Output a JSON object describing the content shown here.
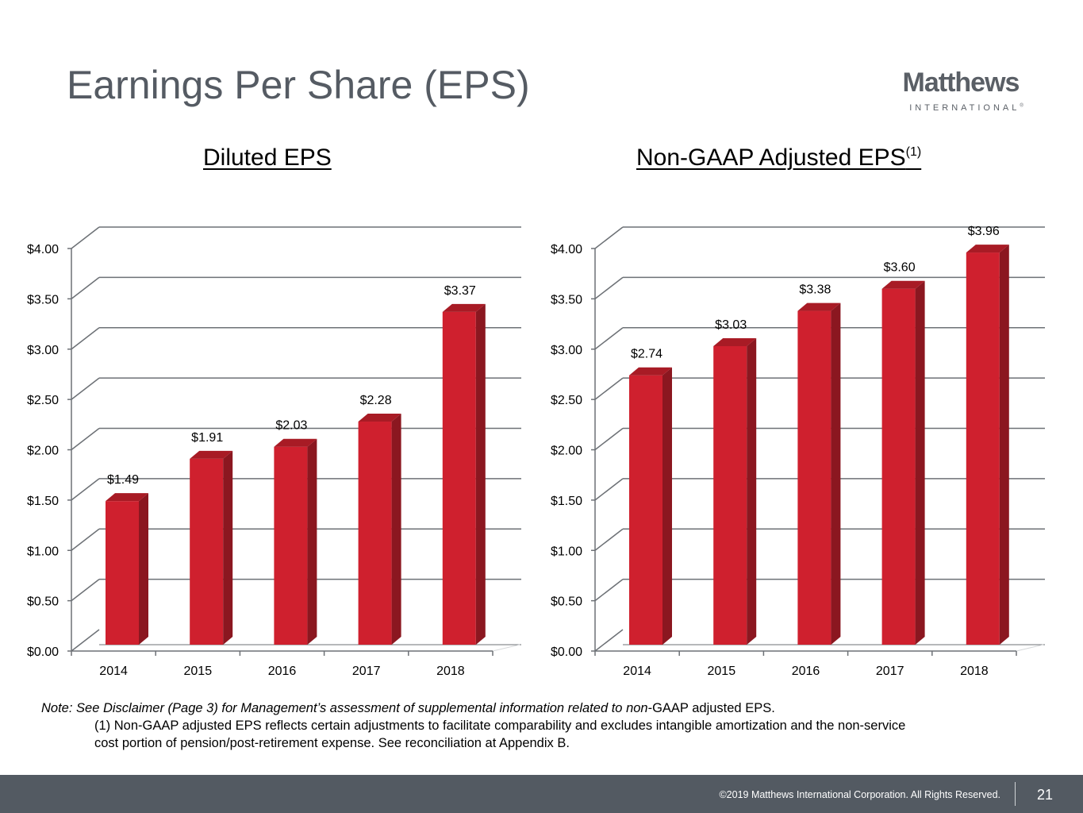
{
  "page": {
    "title": "Earnings Per Share (EPS)",
    "logo": {
      "name": "Matthews",
      "sub": "INTERNATIONAL",
      "mark": "®"
    },
    "notes": {
      "line1_italic": "Note: See Disclaimer (Page 3) for Management’s assessment of supplemental information related to ",
      "line1_italic_non": "non",
      "line1_upright": "-GAAP adjusted EPS.",
      "line2": "(1) Non-GAAP adjusted EPS reflects certain adjustments to facilitate comparability and excludes intangible amortization and the non-service",
      "line3": "cost portion of pension/post-retirement expense. See reconciliation at Appendix B."
    },
    "footer": {
      "copyright": "©2019 Matthews International Corporation. All Rights Reserved.",
      "page_number": "21"
    },
    "colors": {
      "bar_front": "#cf202e",
      "bar_side": "#8b1720",
      "bar_top": "#a81b25",
      "grid": "#6d7176",
      "title": "#555b63",
      "footer_bg": "#535a62"
    }
  },
  "chart_data": [
    {
      "type": "bar",
      "title": "Diluted EPS",
      "title_sup": "",
      "categories": [
        "2014",
        "2015",
        "2016",
        "2017",
        "2018"
      ],
      "values": [
        1.49,
        1.91,
        2.03,
        2.28,
        3.37
      ],
      "data_labels": [
        "$1.49",
        "$1.91",
        "$2.03",
        "$2.28",
        "$3.37"
      ],
      "xlabel": "",
      "ylabel": "",
      "ylim": [
        0,
        4
      ],
      "yticks": [
        0,
        0.5,
        1,
        1.5,
        2,
        2.5,
        3,
        3.5,
        4
      ],
      "ytick_labels": [
        "$0.00",
        "$0.50",
        "$1.00",
        "$1.50",
        "$2.00",
        "$2.50",
        "$3.00",
        "$3.50",
        "$4.00"
      ],
      "grid": true,
      "legend": "none",
      "style": "3d"
    },
    {
      "type": "bar",
      "title": "Non-GAAP Adjusted EPS",
      "title_sup": "(1)",
      "categories": [
        "2014",
        "2015",
        "2016",
        "2017",
        "2018"
      ],
      "values": [
        2.74,
        3.03,
        3.38,
        3.6,
        3.96
      ],
      "data_labels": [
        "$2.74",
        "$3.03",
        "$3.38",
        "$3.60",
        "$3.96"
      ],
      "xlabel": "",
      "ylabel": "",
      "ylim": [
        0,
        4
      ],
      "yticks": [
        0,
        0.5,
        1,
        1.5,
        2,
        2.5,
        3,
        3.5,
        4
      ],
      "ytick_labels": [
        "$0.00",
        "$0.50",
        "$1.00",
        "$1.50",
        "$2.00",
        "$2.50",
        "$3.00",
        "$3.50",
        "$4.00"
      ],
      "grid": true,
      "legend": "none",
      "style": "3d"
    }
  ]
}
